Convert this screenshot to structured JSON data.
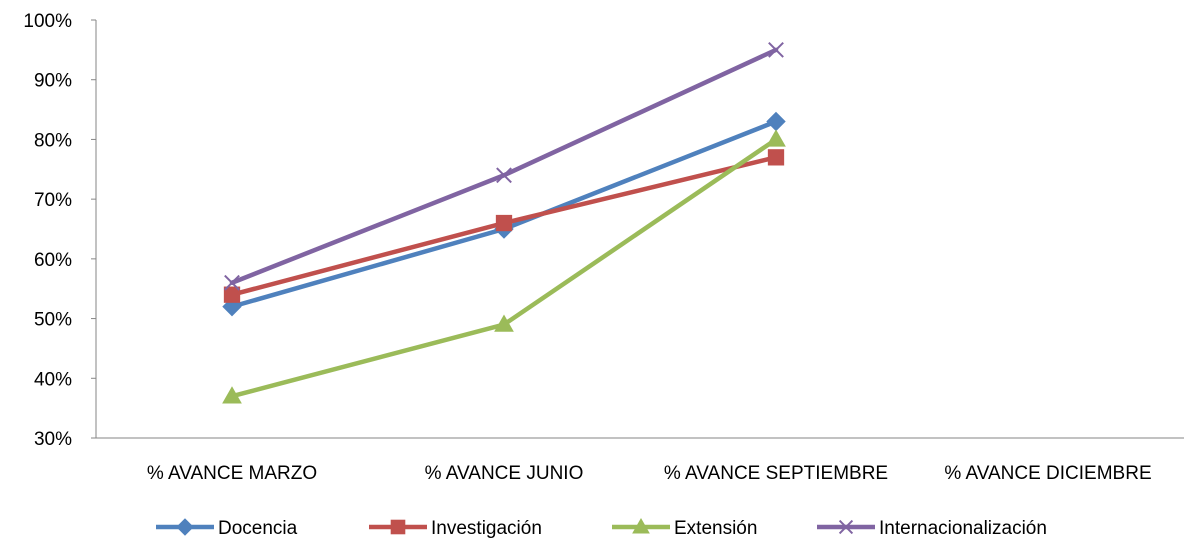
{
  "chart_data": {
    "type": "line",
    "categories": [
      "% AVANCE MARZO",
      "% AVANCE JUNIO",
      "% AVANCE SEPTIEMBRE",
      "% AVANCE DICIEMBRE"
    ],
    "ylim": [
      0.3,
      1.0
    ],
    "yticks": [
      0.3,
      0.4,
      0.5,
      0.6,
      0.7,
      0.8,
      0.9,
      1.0
    ],
    "ytick_labels": [
      "30%",
      "40%",
      "50%",
      "60%",
      "70%",
      "80%",
      "90%",
      "100%"
    ],
    "grid": false,
    "legend_position": "bottom",
    "series": [
      {
        "name": "Docencia",
        "values": [
          0.52,
          0.65,
          0.83,
          null
        ],
        "color": "#4F81BD",
        "marker": "diamond"
      },
      {
        "name": "Investigación",
        "values": [
          0.54,
          0.66,
          0.77,
          null
        ],
        "color": "#C0504D",
        "marker": "square"
      },
      {
        "name": "Extensión",
        "values": [
          0.37,
          0.49,
          0.8,
          null
        ],
        "color": "#9BBB59",
        "marker": "triangle"
      },
      {
        "name": "Internacionalización",
        "values": [
          0.56,
          0.74,
          0.95,
          null
        ],
        "color": "#8064A2",
        "marker": "x"
      }
    ]
  }
}
